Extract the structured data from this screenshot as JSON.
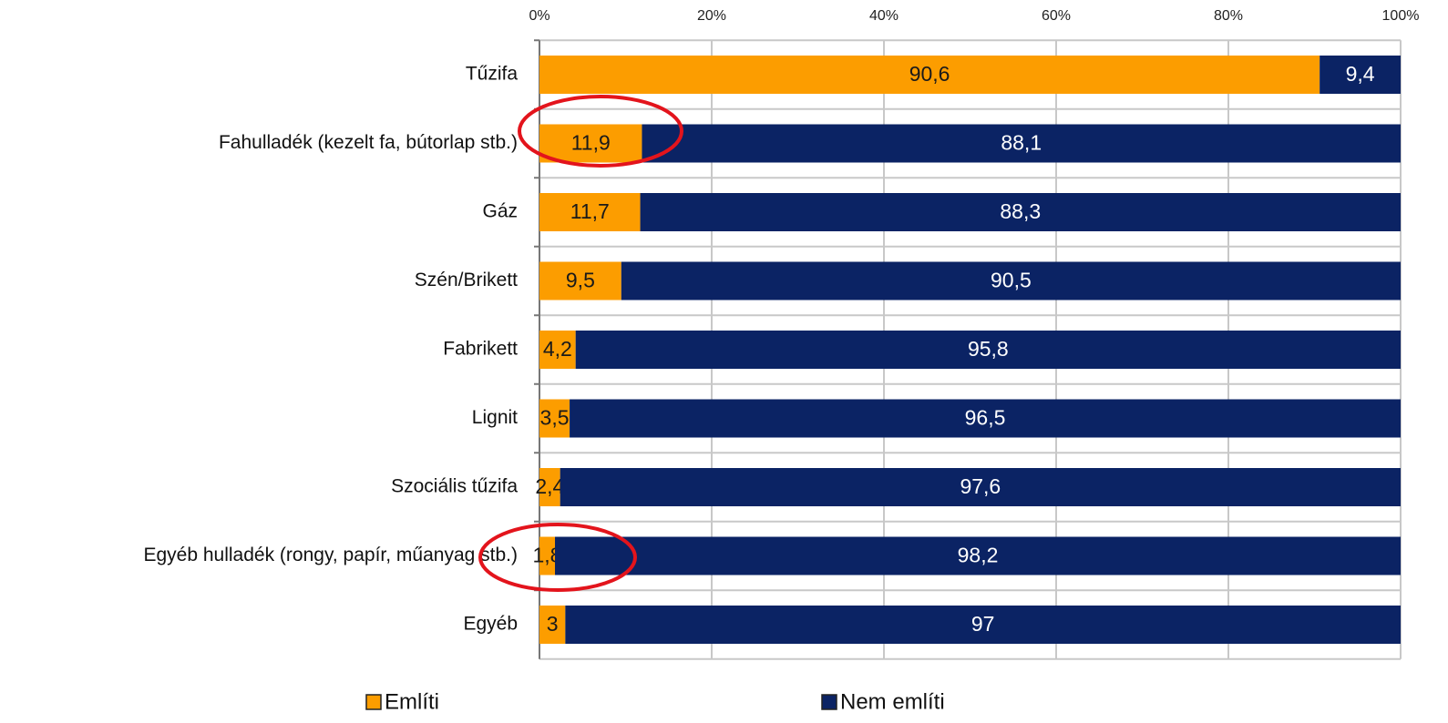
{
  "chart_data": {
    "type": "stacked-bar-horizontal",
    "categories": [
      "Tűzifa",
      "Fahulladék (kezelt fa, bútorlap stb.)",
      "Gáz",
      "Szén/Brikett",
      "Fabrikett",
      "Lignit",
      "Szociális tűzifa",
      "Egyéb hulladék (rongy, papír, műanyag stb.)",
      "Egyéb"
    ],
    "series": [
      {
        "name": "Említi",
        "color": "#fc9d00",
        "values": [
          90.6,
          11.9,
          11.7,
          9.5,
          4.2,
          3.5,
          2.4,
          1.8,
          3
        ],
        "value_labels": [
          "90,6",
          "11,9",
          "11,7",
          "9,5",
          "4,2",
          "3,5",
          "2,4",
          "1,8",
          "3"
        ]
      },
      {
        "name": "Nem említi",
        "color": "#0b2364",
        "values": [
          9.4,
          88.1,
          88.3,
          90.5,
          95.8,
          96.5,
          97.6,
          98.2,
          97
        ],
        "value_labels": [
          "9,4",
          "88,1",
          "88,3",
          "90,5",
          "95,8",
          "96,5",
          "97,6",
          "98,2",
          "97"
        ]
      }
    ],
    "xlim": [
      0,
      100
    ],
    "xticks": [
      {
        "value": 0,
        "label": "0%"
      },
      {
        "value": 20,
        "label": "20%"
      },
      {
        "value": 40,
        "label": "40%"
      },
      {
        "value": 60,
        "label": "60%"
      },
      {
        "value": 80,
        "label": "80%"
      },
      {
        "value": 100,
        "label": "100%"
      }
    ],
    "grid": true,
    "legend": "bottom"
  }
}
